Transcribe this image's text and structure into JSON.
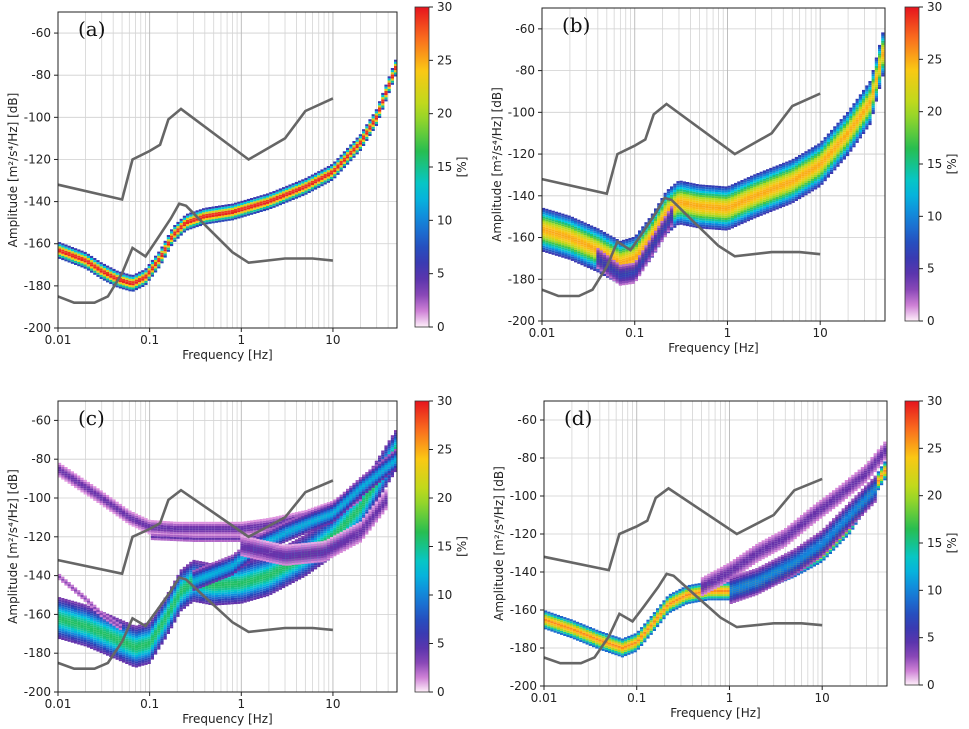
{
  "chart_data": [
    {
      "type": "heatmap",
      "panel_label": "(a)",
      "xlabel": "Frequency [Hz]",
      "ylabel": "Amplitude [m²/s⁴/Hz] [dB]",
      "xscale": "log",
      "xlim": [
        0.01,
        50
      ],
      "ylim": [
        -200,
        -50
      ],
      "xticks": [
        "0.01",
        "0.1",
        "1",
        "10"
      ],
      "yticks": [
        "-60",
        "-80",
        "-100",
        "-120",
        "-140",
        "-160",
        "-180",
        "-200"
      ],
      "colorbar": {
        "label": "[%]",
        "range": [
          0,
          30
        ],
        "ticks": [
          "0",
          "5",
          "10",
          "15",
          "20",
          "25",
          "30"
        ]
      },
      "reference_curves": {
        "nhnm": [
          [
            0.01,
            -132
          ],
          [
            0.05,
            -139
          ],
          [
            0.065,
            -120
          ],
          [
            0.1,
            -116
          ],
          [
            0.13,
            -113
          ],
          [
            0.16,
            -101
          ],
          [
            0.22,
            -96
          ],
          [
            1.2,
            -120
          ],
          [
            3,
            -110
          ],
          [
            5,
            -97
          ],
          [
            10,
            -91
          ]
        ],
        "nlnm": [
          [
            0.01,
            -185
          ],
          [
            0.015,
            -188
          ],
          [
            0.025,
            -188
          ],
          [
            0.035,
            -185
          ],
          [
            0.05,
            -174
          ],
          [
            0.065,
            -162
          ],
          [
            0.09,
            -166
          ],
          [
            0.12,
            -158
          ],
          [
            0.17,
            -148
          ],
          [
            0.21,
            -141
          ],
          [
            0.25,
            -142
          ],
          [
            0.4,
            -151
          ],
          [
            0.8,
            -164
          ],
          [
            1.2,
            -169
          ],
          [
            3,
            -167
          ],
          [
            6,
            -167
          ],
          [
            10,
            -168
          ]
        ]
      },
      "density_ridges": [
        {
          "points": [
            [
              0.01,
              -163
            ],
            [
              0.02,
              -168
            ],
            [
              0.03,
              -173
            ],
            [
              0.045,
              -177
            ],
            [
              0.065,
              -179
            ],
            [
              0.09,
              -176
            ],
            [
              0.13,
              -167
            ],
            [
              0.18,
              -156
            ],
            [
              0.25,
              -150
            ],
            [
              0.4,
              -147
            ],
            [
              0.8,
              -145
            ],
            [
              2,
              -140
            ],
            [
              5,
              -133
            ],
            [
              10,
              -126
            ],
            [
              20,
              -112
            ],
            [
              30,
              -100
            ],
            [
              50,
              -75
            ]
          ],
          "peak": 30,
          "spread": 2
        }
      ]
    },
    {
      "type": "heatmap",
      "panel_label": "(b)",
      "xlabel": "Frequency [Hz]",
      "ylabel": "Amplitude [m²/s⁴/Hz] [dB]",
      "xscale": "log",
      "xlim": [
        0.01,
        50
      ],
      "ylim": [
        -200,
        -50
      ],
      "xticks": [
        "0.01",
        "0.1",
        "1",
        "10"
      ],
      "yticks": [
        "-60",
        "-80",
        "-100",
        "-120",
        "-140",
        "-160",
        "-180",
        "-200"
      ],
      "colorbar": {
        "label": "[%]",
        "range": [
          0,
          30
        ],
        "ticks": [
          "0",
          "5",
          "10",
          "15",
          "20",
          "25",
          "30"
        ]
      },
      "reference_curves": {
        "nhnm": [
          [
            0.01,
            -132
          ],
          [
            0.05,
            -139
          ],
          [
            0.065,
            -120
          ],
          [
            0.1,
            -116
          ],
          [
            0.13,
            -113
          ],
          [
            0.16,
            -101
          ],
          [
            0.22,
            -96
          ],
          [
            1.2,
            -120
          ],
          [
            3,
            -110
          ],
          [
            5,
            -97
          ],
          [
            10,
            -91
          ]
        ],
        "nlnm": [
          [
            0.01,
            -185
          ],
          [
            0.015,
            -188
          ],
          [
            0.025,
            -188
          ],
          [
            0.035,
            -185
          ],
          [
            0.05,
            -174
          ],
          [
            0.065,
            -162
          ],
          [
            0.09,
            -166
          ],
          [
            0.12,
            -158
          ],
          [
            0.17,
            -148
          ],
          [
            0.21,
            -141
          ],
          [
            0.25,
            -142
          ],
          [
            0.4,
            -151
          ],
          [
            0.8,
            -164
          ],
          [
            1.2,
            -169
          ],
          [
            3,
            -167
          ],
          [
            6,
            -167
          ],
          [
            10,
            -168
          ]
        ]
      },
      "density_ridges": [
        {
          "points": [
            [
              0.01,
              -156
            ],
            [
              0.02,
              -160
            ],
            [
              0.04,
              -166
            ],
            [
              0.07,
              -172
            ],
            [
              0.1,
              -170
            ],
            [
              0.15,
              -160
            ],
            [
              0.22,
              -148
            ],
            [
              0.3,
              -143
            ],
            [
              0.5,
              -145
            ],
            [
              1,
              -146
            ],
            [
              2,
              -140
            ],
            [
              5,
              -133
            ],
            [
              10,
              -125
            ],
            [
              20,
              -110
            ],
            [
              35,
              -95
            ],
            [
              50,
              -68
            ]
          ],
          "peak": 25,
          "spread": 6
        },
        {
          "points": [
            [
              0.04,
              -170
            ],
            [
              0.07,
              -178
            ],
            [
              0.1,
              -177
            ],
            [
              0.15,
              -165
            ],
            [
              0.25,
              -150
            ]
          ],
          "peak": 6,
          "spread": 3
        }
      ]
    },
    {
      "type": "heatmap",
      "panel_label": "(c)",
      "xlabel": "Frequency [Hz]",
      "ylabel": "Amplitude [m²/s⁴/Hz] [dB]",
      "xscale": "log",
      "xlim": [
        0.01,
        50
      ],
      "ylim": [
        -200,
        -50
      ],
      "xticks": [
        "0.01",
        "0.1",
        "1",
        "10"
      ],
      "yticks": [
        "-60",
        "-80",
        "-100",
        "-120",
        "-140",
        "-160",
        "-180",
        "-200"
      ],
      "colorbar": {
        "label": "[%]",
        "range": [
          0,
          30
        ],
        "ticks": [
          "0",
          "5",
          "10",
          "15",
          "20",
          "25",
          "30"
        ]
      },
      "reference_curves": {
        "nhnm": [
          [
            0.01,
            -132
          ],
          [
            0.05,
            -139
          ],
          [
            0.065,
            -120
          ],
          [
            0.1,
            -116
          ],
          [
            0.13,
            -113
          ],
          [
            0.16,
            -101
          ],
          [
            0.22,
            -96
          ],
          [
            1.2,
            -120
          ],
          [
            3,
            -110
          ],
          [
            5,
            -97
          ],
          [
            10,
            -91
          ]
        ],
        "nlnm": [
          [
            0.01,
            -185
          ],
          [
            0.015,
            -188
          ],
          [
            0.025,
            -188
          ],
          [
            0.035,
            -185
          ],
          [
            0.05,
            -174
          ],
          [
            0.065,
            -162
          ],
          [
            0.09,
            -166
          ],
          [
            0.12,
            -158
          ],
          [
            0.17,
            -148
          ],
          [
            0.21,
            -141
          ],
          [
            0.25,
            -142
          ],
          [
            0.4,
            -151
          ],
          [
            0.8,
            -164
          ],
          [
            1.2,
            -169
          ],
          [
            3,
            -167
          ],
          [
            6,
            -167
          ],
          [
            10,
            -168
          ]
        ]
      },
      "density_ridges": [
        {
          "points": [
            [
              0.01,
              -162
            ],
            [
              0.02,
              -166
            ],
            [
              0.04,
              -172
            ],
            [
              0.07,
              -177
            ],
            [
              0.1,
              -175
            ],
            [
              0.15,
              -162
            ],
            [
              0.22,
              -148
            ],
            [
              0.3,
              -143
            ],
            [
              0.5,
              -145
            ],
            [
              1,
              -144
            ],
            [
              2,
              -140
            ],
            [
              5,
              -130
            ],
            [
              10,
              -120
            ],
            [
              20,
              -105
            ],
            [
              50,
              -75
            ]
          ],
          "peak": 16,
          "spread": 6
        },
        {
          "points": [
            [
              0.01,
              -85
            ],
            [
              0.03,
              -100
            ],
            [
              0.06,
              -110
            ],
            [
              0.1,
              -115
            ],
            [
              0.2,
              -116
            ],
            [
              0.5,
              -116
            ],
            [
              1,
              -116
            ],
            [
              2,
              -114
            ],
            [
              5,
              -110
            ],
            [
              10,
              -105
            ],
            [
              20,
              -95
            ],
            [
              50,
              -78
            ]
          ],
          "peak": 4,
          "spread": 2
        },
        {
          "points": [
            [
              0.1,
              -120
            ],
            [
              0.3,
              -121
            ],
            [
              1,
              -121
            ],
            [
              3,
              -118
            ],
            [
              10,
              -110
            ],
            [
              20,
              -100
            ]
          ],
          "peak": 4,
          "spread": 1
        },
        {
          "points": [
            [
              0.3,
              -143
            ],
            [
              0.8,
              -135
            ],
            [
              1.5,
              -125
            ],
            [
              3,
              -118
            ],
            [
              6,
              -112
            ],
            [
              10,
              -108
            ],
            [
              20,
              -95
            ],
            [
              50,
              -80
            ]
          ],
          "peak": 12,
          "spread": 3
        },
        {
          "points": [
            [
              1,
              -125
            ],
            [
              3,
              -130
            ],
            [
              8,
              -128
            ],
            [
              20,
              -118
            ],
            [
              40,
              -100
            ]
          ],
          "peak": 4,
          "spread": 3
        },
        {
          "points": [
            [
              0.01,
              -140
            ],
            [
              0.02,
              -152
            ],
            [
              0.03,
              -160
            ],
            [
              0.05,
              -167
            ]
          ],
          "peak": 3,
          "spread": 1
        }
      ]
    },
    {
      "type": "heatmap",
      "panel_label": "(d)",
      "xlabel": "Frequency [Hz]",
      "ylabel": "Amplitude [m²/s⁴/Hz] [dB]",
      "xscale": "log",
      "xlim": [
        0.01,
        50
      ],
      "ylim": [
        -200,
        -50
      ],
      "xticks": [
        "0.01",
        "0.1",
        "1",
        "10"
      ],
      "yticks": [
        "-60",
        "-80",
        "-100",
        "-120",
        "-140",
        "-160",
        "-180",
        "-200"
      ],
      "colorbar": {
        "label": "[%]",
        "range": [
          0,
          30
        ],
        "ticks": [
          "0",
          "5",
          "10",
          "15",
          "20",
          "25",
          "30"
        ]
      },
      "reference_curves": {
        "nhnm": [
          [
            0.01,
            -132
          ],
          [
            0.05,
            -139
          ],
          [
            0.065,
            -120
          ],
          [
            0.1,
            -116
          ],
          [
            0.13,
            -113
          ],
          [
            0.16,
            -101
          ],
          [
            0.22,
            -96
          ],
          [
            1.2,
            -120
          ],
          [
            3,
            -110
          ],
          [
            5,
            -97
          ],
          [
            10,
            -91
          ]
        ],
        "nlnm": [
          [
            0.01,
            -185
          ],
          [
            0.015,
            -188
          ],
          [
            0.025,
            -188
          ],
          [
            0.035,
            -185
          ],
          [
            0.05,
            -174
          ],
          [
            0.065,
            -162
          ],
          [
            0.09,
            -166
          ],
          [
            0.12,
            -158
          ],
          [
            0.17,
            -148
          ],
          [
            0.21,
            -141
          ],
          [
            0.25,
            -142
          ],
          [
            0.4,
            -151
          ],
          [
            0.8,
            -164
          ],
          [
            1.2,
            -169
          ],
          [
            3,
            -167
          ],
          [
            6,
            -167
          ],
          [
            10,
            -168
          ]
        ]
      },
      "density_ridges": [
        {
          "points": [
            [
              0.01,
              -165
            ],
            [
              0.02,
              -170
            ],
            [
              0.04,
              -176
            ],
            [
              0.07,
              -180
            ],
            [
              0.1,
              -177
            ],
            [
              0.15,
              -167
            ],
            [
              0.22,
              -157
            ],
            [
              0.35,
              -152
            ],
            [
              0.6,
              -150
            ],
            [
              1,
              -150
            ],
            [
              2,
              -146
            ],
            [
              5,
              -138
            ],
            [
              10,
              -130
            ],
            [
              20,
              -115
            ],
            [
              50,
              -85
            ]
          ],
          "peak": 26,
          "spread": 3
        },
        {
          "points": [
            [
              0.5,
              -148
            ],
            [
              1,
              -140
            ],
            [
              2,
              -130
            ],
            [
              4,
              -122
            ],
            [
              8,
              -110
            ],
            [
              15,
              -100
            ],
            [
              30,
              -88
            ],
            [
              50,
              -75
            ]
          ],
          "peak": 4,
          "spread": 3
        },
        {
          "points": [
            [
              1,
              -150
            ],
            [
              2,
              -145
            ],
            [
              5,
              -135
            ],
            [
              10,
              -125
            ],
            [
              20,
              -110
            ],
            [
              40,
              -95
            ]
          ],
          "peak": 10,
          "spread": 4
        }
      ]
    }
  ]
}
